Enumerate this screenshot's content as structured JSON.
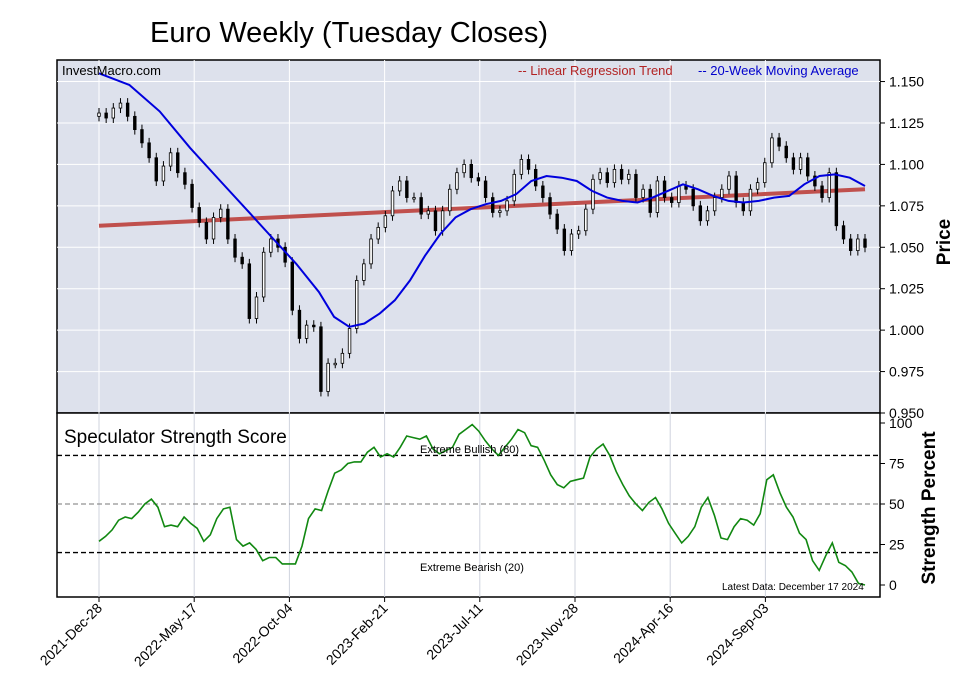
{
  "chart_data": {
    "type": "candlestick",
    "title": "Euro Weekly (Tuesday Closes)",
    "source": "InvestMacro.com",
    "latest_data": "Latest Data: December 17 2024",
    "legend": [
      {
        "name": "-- Linear Regression Trend",
        "color": "#b22222"
      },
      {
        "name": "-- 20-Week Moving Average",
        "color": "#0000cc"
      }
    ],
    "x_ticks": [
      "2021-Dec-28",
      "2022-May-17",
      "2022-Oct-04",
      "2023-Feb-21",
      "2023-Jul-11",
      "2023-Nov-28",
      "2024-Apr-16",
      "2024-Sep-03"
    ],
    "price_panel": {
      "ylabel": "Price",
      "ylim": [
        0.95,
        1.163
      ],
      "yticks": [
        "1.150",
        "1.125",
        "1.100",
        "1.075",
        "1.050",
        "1.025",
        "1.000",
        "0.975",
        "0.950"
      ],
      "closes": [
        1.131,
        1.128,
        1.134,
        1.137,
        1.129,
        1.121,
        1.113,
        1.104,
        1.09,
        1.099,
        1.107,
        1.095,
        1.088,
        1.074,
        1.065,
        1.055,
        1.068,
        1.073,
        1.055,
        1.044,
        1.04,
        1.007,
        1.02,
        1.047,
        1.055,
        1.05,
        1.041,
        1.012,
        0.995,
        1.003,
        1.002,
        0.963,
        0.98,
        0.98,
        0.986,
        1.001,
        1.03,
        1.04,
        1.055,
        1.062,
        1.069,
        1.084,
        1.09,
        1.08,
        1.08,
        1.07,
        1.072,
        1.06,
        1.072,
        1.085,
        1.095,
        1.1,
        1.092,
        1.09,
        1.08,
        1.071,
        1.072,
        1.078,
        1.094,
        1.103,
        1.097,
        1.087,
        1.08,
        1.07,
        1.061,
        1.048,
        1.058,
        1.06,
        1.073,
        1.091,
        1.095,
        1.089,
        1.097,
        1.091,
        1.094,
        1.08,
        1.085,
        1.071,
        1.09,
        1.08,
        1.077,
        1.087,
        1.085,
        1.075,
        1.066,
        1.072,
        1.08,
        1.085,
        1.093,
        1.077,
        1.072,
        1.085,
        1.089,
        1.101,
        1.116,
        1.111,
        1.104,
        1.097,
        1.104,
        1.093,
        1.087,
        1.08,
        1.095,
        1.063,
        1.055,
        1.048,
        1.055,
        1.05
      ],
      "ma20_anchors": [
        [
          0,
          1.155
        ],
        [
          4,
          1.148
        ],
        [
          8,
          1.132
        ],
        [
          12,
          1.11
        ],
        [
          16,
          1.09
        ],
        [
          20,
          1.07
        ],
        [
          23,
          1.055
        ],
        [
          26,
          1.04
        ],
        [
          29,
          1.023
        ],
        [
          31,
          1.008
        ],
        [
          33,
          1.002
        ],
        [
          35,
          1.004
        ],
        [
          37,
          1.01
        ],
        [
          39,
          1.018
        ],
        [
          41,
          1.03
        ],
        [
          43,
          1.045
        ],
        [
          45,
          1.058
        ],
        [
          47,
          1.068
        ],
        [
          49,
          1.073
        ],
        [
          51,
          1.076
        ],
        [
          53,
          1.078
        ],
        [
          55,
          1.082
        ],
        [
          57,
          1.09
        ],
        [
          59,
          1.093
        ],
        [
          61,
          1.092
        ],
        [
          63,
          1.09
        ],
        [
          65,
          1.084
        ],
        [
          67,
          1.08
        ],
        [
          69,
          1.078
        ],
        [
          71,
          1.077
        ],
        [
          73,
          1.08
        ],
        [
          75,
          1.084
        ],
        [
          77,
          1.088
        ],
        [
          79,
          1.085
        ],
        [
          81,
          1.081
        ],
        [
          83,
          1.078
        ],
        [
          85,
          1.077
        ],
        [
          87,
          1.078
        ],
        [
          89,
          1.08
        ],
        [
          91,
          1.081
        ],
        [
          93,
          1.088
        ],
        [
          95,
          1.093
        ],
        [
          97,
          1.094
        ],
        [
          99,
          1.092
        ],
        [
          101,
          1.087
        ]
      ],
      "trend": {
        "start": 1.063,
        "end": 1.085
      }
    },
    "strength_panel": {
      "title": "Speculator Strength Score",
      "ylabel": "Strength Percent",
      "ylim": [
        0,
        100
      ],
      "yticks": [
        "100",
        "75",
        "50",
        "25",
        "0"
      ],
      "extreme_bullish": {
        "value": 80,
        "label": "Extreme Bullish (80)"
      },
      "extreme_bearish": {
        "value": 20,
        "label": "Extreme Bearish (20)"
      },
      "midline": 50,
      "values": [
        27,
        30,
        34,
        40,
        42,
        41,
        45,
        50,
        53,
        48,
        36,
        37,
        36,
        42,
        38,
        35,
        27,
        31,
        41,
        47,
        48,
        28,
        24,
        26,
        22,
        15,
        17,
        17,
        13,
        13,
        13,
        24,
        41,
        47,
        46,
        58,
        69,
        71,
        75,
        76,
        76,
        82,
        85,
        79,
        81,
        79,
        85,
        92,
        91,
        90,
        92,
        84,
        81,
        83,
        85,
        93,
        96,
        99,
        95,
        89,
        84,
        80,
        85,
        90,
        96,
        94,
        86,
        85,
        77,
        68,
        62,
        60,
        64,
        65,
        66,
        79,
        84,
        87,
        80,
        70,
        62,
        55,
        50,
        46,
        51,
        54,
        47,
        38,
        32,
        26,
        30,
        36,
        48,
        54,
        43,
        29,
        28,
        36,
        41,
        40,
        37,
        44,
        65,
        68,
        57,
        48,
        42,
        32,
        28,
        15,
        9,
        18,
        26,
        14,
        12,
        8,
        1,
        0
      ]
    }
  }
}
